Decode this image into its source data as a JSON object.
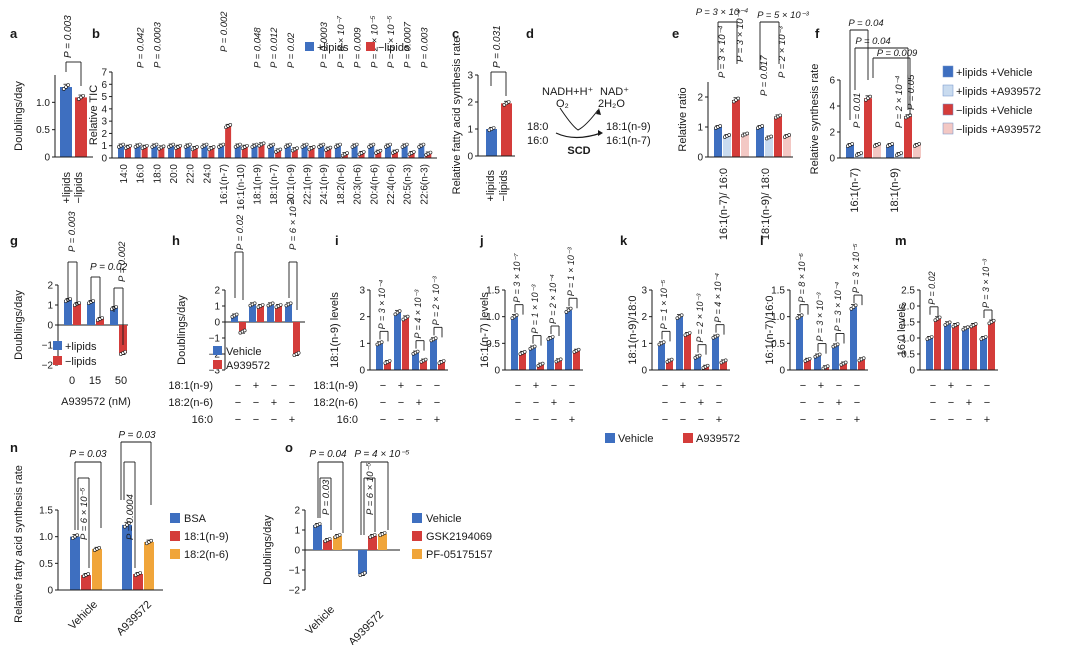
{
  "colors": {
    "blue": "#3e6fc0",
    "red": "#d43c3a",
    "light_blue": "#c9dbef",
    "pink": "#f3c8c4",
    "orange": "#f0a53a",
    "ink": "#1a1a1a"
  },
  "chart_data": [
    {
      "id": "a",
      "panel_label": "a",
      "type": "bar",
      "ylabel": "Doublings/day",
      "ylim": [
        0,
        1.5
      ],
      "yticks": [
        "0",
        "0.5",
        "1.0"
      ],
      "ytick_values": [
        0,
        0.5,
        1.0
      ],
      "categories": [
        "+lipids",
        "−lipids"
      ],
      "values": [
        1.28,
        1.09
      ],
      "annotations": [
        {
          "text": "P = 0.003"
        }
      ]
    },
    {
      "id": "b",
      "panel_label": "b",
      "type": "bar",
      "ylabel": "Relative TIC",
      "ylim": [
        0,
        7
      ],
      "yticks": [
        "0",
        "1",
        "2",
        "3",
        "4",
        "5",
        "6",
        "7"
      ],
      "legend": [
        "+lipids",
        "−lipids"
      ],
      "categories": [
        "14:0",
        "16:0",
        "18:0",
        "20:0",
        "22:0",
        "24:0",
        "16:1(n-7)",
        "16:1(n-10)",
        "18:1(n-9)",
        "18:1(n-7)",
        "20:1(n-9)",
        "22:1(n-9)",
        "24:1(n-9)",
        "18:2(n-6)",
        "20:3(n-6)",
        "20:4(n-6)",
        "22:4(n-6)",
        "20:5(n-3)",
        "22:6(n-3)"
      ],
      "series": [
        {
          "name": "+lipids",
          "values": [
            1,
            1,
            1,
            1,
            1,
            1,
            1,
            1,
            1,
            1,
            1,
            1,
            1,
            1,
            1,
            1,
            1,
            1,
            1
          ]
        },
        {
          "name": "−lipids",
          "values": [
            0.9,
            0.9,
            0.85,
            0.9,
            0.8,
            0.8,
            2.6,
            0.9,
            1.1,
            0.6,
            0.7,
            0.8,
            0.75,
            0.3,
            0.4,
            0.5,
            0.5,
            0.4,
            0.35
          ]
        }
      ],
      "annotations": [
        "",
        "P = 0.042",
        "P = 0.0003",
        "",
        "",
        "",
        "P = 0.002",
        "",
        "P = 0.048",
        "P = 0.012",
        "P = 0.02",
        "",
        "P = 0.0003",
        "P = 8 × 10⁻⁷",
        "P = 0.009",
        "P = 2 × 10⁻⁵",
        "P = 6 × 10⁻⁵",
        "P = 0.0007",
        "P = 0.003"
      ]
    },
    {
      "id": "c",
      "panel_label": "c",
      "type": "bar",
      "ylabel": "Relative fatty acid synthesis rate",
      "ylim": [
        0,
        3
      ],
      "yticks": [
        "0",
        "1",
        "2",
        "3"
      ],
      "categories": [
        "+lipids",
        "−lipids"
      ],
      "values": [
        1.0,
        1.95
      ],
      "annotations": [
        {
          "text": "P = 0.031"
        }
      ]
    },
    {
      "id": "d",
      "panel_label": "d",
      "type": "diagram",
      "top_left": "NADH+H⁺",
      "top_left2": "O₂",
      "top_right": "NAD⁺",
      "top_right2": "2H₂O",
      "substrates": [
        "18:0",
        "16:0"
      ],
      "products": [
        "18:1(n-9)",
        "16:1(n-7)"
      ],
      "enzyme": "SCD"
    },
    {
      "id": "e",
      "panel_label": "e",
      "type": "bar",
      "ylabel": "Relative ratio",
      "ylim": [
        0,
        2.5
      ],
      "yticks": [
        "0",
        "1",
        "2"
      ],
      "categories": [
        "16:1(n-7)/ 16:0",
        "18:1(n-9)/ 18:0"
      ],
      "series_names": [
        "+lipids +Vehicle",
        "+lipids +A939572",
        "−lipids +Vehicle",
        "−lipids +A939572"
      ],
      "series": [
        [
          1.0,
          1.0
        ],
        [
          0.7,
          0.65
        ],
        [
          1.9,
          1.35
        ],
        [
          0.75,
          0.7
        ]
      ],
      "annotations": [
        "P = 3 × 10⁻⁴",
        "P = 5 × 10⁻³",
        "P = 3 × 10⁻⁴",
        "P = 3 × 10⁻⁴",
        "P = 0.017",
        "P = 2 × 10⁻³"
      ]
    },
    {
      "id": "f",
      "panel_label": "f",
      "type": "bar",
      "ylabel": "Relative synthesis rate",
      "ylim": [
        0,
        6
      ],
      "yticks": [
        "0",
        "2",
        "4",
        "6"
      ],
      "categories": [
        "16:1(n-7)",
        "18:1(n-9)"
      ],
      "series_names": [
        "+lipids +Vehicle",
        "+lipids +A939572",
        "−lipids +Vehicle",
        "−lipids +A939572"
      ],
      "series": [
        [
          1.0,
          1.0
        ],
        [
          0.3,
          0.3
        ],
        [
          4.6,
          3.2
        ],
        [
          1.0,
          1.0
        ]
      ],
      "annotations": [
        "P = 0.04",
        "P = 0.04",
        "P = 0.009",
        "P = 0.01",
        "P = 2 × 10⁻⁴",
        "P = 0.05"
      ]
    },
    {
      "id": "g",
      "panel_label": "g",
      "type": "bar",
      "ylabel": "Doublings/day",
      "ylim": [
        -2,
        2
      ],
      "yticks": [
        "−2",
        "−1",
        "0",
        "1",
        "2"
      ],
      "xlabel": "A939572 (nM)",
      "categories": [
        "0",
        "15",
        "50"
      ],
      "legend": [
        "+lipids",
        "−lipids"
      ],
      "series": [
        {
          "name": "+lipids",
          "values": [
            1.25,
            1.15,
            0.85
          ]
        },
        {
          "name": "−lipids",
          "values": [
            1.05,
            0.3,
            -1.4
          ]
        }
      ],
      "annotations": [
        "P = 0.003",
        "P = 0.02",
        "P = 0.002"
      ]
    },
    {
      "id": "h",
      "panel_label": "h",
      "type": "bar",
      "ylabel": "Doublings/day",
      "ylim": [
        -3,
        2
      ],
      "yticks": [
        "−3",
        "−2",
        "−1",
        "0",
        "1",
        "2"
      ],
      "legend": [
        "Vehicle",
        "A939572"
      ],
      "row_labels": [
        "18:1(n-9)",
        "18:2(n-6)",
        "16:0"
      ],
      "row_marks": [
        [
          "−",
          "+",
          "−",
          "−"
        ],
        [
          "−",
          "−",
          "+",
          "−"
        ],
        [
          "−",
          "−",
          "−",
          "+"
        ]
      ],
      "series": [
        {
          "name": "Vehicle",
          "values": [
            0.4,
            1.1,
            1.1,
            1.1
          ]
        },
        {
          "name": "A939572",
          "values": [
            -0.6,
            1.0,
            1.0,
            -2.0
          ]
        }
      ],
      "annotations": [
        "P = 0.02",
        "P = 6 × 10⁻⁴"
      ]
    },
    {
      "id": "i",
      "panel_label": "i",
      "type": "bar",
      "ylabel": "18:1(n-9) levels",
      "ylim": [
        0,
        3
      ],
      "yticks": [
        "0",
        "1",
        "2",
        "3"
      ],
      "row_labels": [
        "18:1(n-9)",
        "18:2(n-6)",
        "16:0"
      ],
      "row_marks": [
        [
          "−",
          "+",
          "−",
          "−"
        ],
        [
          "−",
          "−",
          "+",
          "−"
        ],
        [
          "−",
          "−",
          "−",
          "+"
        ]
      ],
      "series": [
        {
          "name": "Vehicle",
          "values": [
            1.0,
            2.15,
            0.65,
            1.15
          ]
        },
        {
          "name": "A939572",
          "values": [
            0.3,
            1.95,
            0.35,
            0.3
          ]
        }
      ],
      "annotations": [
        "P = 3 × 10⁻⁴",
        "",
        "P = 4 × 10⁻³",
        "P = 2 × 10⁻³"
      ]
    },
    {
      "id": "j",
      "panel_label": "j",
      "type": "bar",
      "ylabel": "16:1(n-7) levels",
      "ylim": [
        0,
        1.5
      ],
      "yticks": [
        "0",
        "0.5",
        "1.0",
        "1.5"
      ],
      "row_labels": [
        "18:1(n-9)",
        "18:2(n-6)",
        "16:0"
      ],
      "row_marks": [
        [
          "−",
          "+",
          "−",
          "−"
        ],
        [
          "−",
          "−",
          "+",
          "−"
        ],
        [
          "−",
          "−",
          "−",
          "+"
        ]
      ],
      "series": [
        {
          "name": "Vehicle",
          "values": [
            1.0,
            0.42,
            0.6,
            1.12
          ]
        },
        {
          "name": "A939572",
          "values": [
            0.32,
            0.1,
            0.18,
            0.36
          ]
        }
      ],
      "annotations": [
        "P = 3 × 10⁻⁷",
        "P = 1 × 10⁻³",
        "P = 2 × 10⁻⁴",
        "P = 1 × 10⁻³"
      ]
    },
    {
      "id": "k",
      "panel_label": "k",
      "type": "bar",
      "ylabel": "18:1(n-9)/18:0",
      "ylim": [
        0,
        3
      ],
      "yticks": [
        "0",
        "1",
        "2",
        "3"
      ],
      "row_labels": [
        "18:1(n-9)",
        "18:2(n-6)",
        "16:0"
      ],
      "row_marks": [
        [
          "−",
          "+",
          "−",
          "−"
        ],
        [
          "−",
          "−",
          "+",
          "−"
        ],
        [
          "−",
          "−",
          "−",
          "+"
        ]
      ],
      "series": [
        {
          "name": "Vehicle",
          "values": [
            1.0,
            2.0,
            0.5,
            1.25
          ]
        },
        {
          "name": "A939572",
          "values": [
            0.35,
            1.35,
            0.12,
            0.32
          ]
        }
      ],
      "annotations": [
        "P = 1 × 10⁻⁵",
        "",
        "P = 2 × 10⁻³",
        "P = 4 × 10⁻⁴"
      ]
    },
    {
      "id": "l",
      "panel_label": "l",
      "type": "bar",
      "ylabel": "16:1(n-7)/16:0",
      "ylim": [
        0,
        1.5
      ],
      "yticks": [
        "0",
        "0.5",
        "1.0",
        "1.5"
      ],
      "row_labels": [
        "18:1(n-9)",
        "18:2(n-6)",
        "16:0"
      ],
      "row_marks": [
        [
          "−",
          "+",
          "−",
          "−"
        ],
        [
          "−",
          "−",
          "+",
          "−"
        ],
        [
          "−",
          "−",
          "−",
          "+"
        ]
      ],
      "series": [
        {
          "name": "Vehicle",
          "values": [
            1.0,
            0.27,
            0.46,
            1.18
          ]
        },
        {
          "name": "A939572",
          "values": [
            0.19,
            0.05,
            0.12,
            0.2
          ]
        }
      ],
      "annotations": [
        "P = 8 × 10⁻⁶",
        "P = 3 × 10⁻³",
        "P = 3 × 10⁻⁴",
        "P = 3 × 10⁻⁵"
      ]
    },
    {
      "id": "m",
      "panel_label": "m",
      "type": "bar",
      "ylabel": "16:0 levels",
      "ylim": [
        0,
        2.5
      ],
      "yticks": [
        "0",
        "0.5",
        "1.0",
        "1.5",
        "2.0",
        "2.5"
      ],
      "row_labels": [
        "18:1(n-9)",
        "18:2(n-6)",
        "16:0"
      ],
      "row_marks": [
        [
          "−",
          "+",
          "−",
          "−"
        ],
        [
          "−",
          "−",
          "+",
          "−"
        ],
        [
          "−",
          "−",
          "−",
          "+"
        ]
      ],
      "series": [
        {
          "name": "Vehicle",
          "values": [
            1.0,
            1.45,
            1.3,
            1.0
          ]
        },
        {
          "name": "A939572",
          "values": [
            1.6,
            1.4,
            1.4,
            1.5
          ]
        }
      ],
      "annotations": [
        "P = 0.02",
        "",
        "",
        "P = 3 × 10⁻³"
      ]
    },
    {
      "id": "n",
      "panel_label": "n",
      "type": "bar",
      "ylabel": "Relative fatty acid synthesis rate",
      "ylim": [
        0,
        1.5
      ],
      "yticks": [
        "0",
        "0.5",
        "1.0",
        "1.5"
      ],
      "categories": [
        "Vehicle",
        "A939572"
      ],
      "legend": [
        "BSA",
        "18:1(n-9)",
        "18:2(n-6)"
      ],
      "series": [
        {
          "name": "BSA",
          "values": [
            1.0,
            1.22
          ]
        },
        {
          "name": "18:1(n-9)",
          "values": [
            0.28,
            0.3
          ]
        },
        {
          "name": "18:2(n-6)",
          "values": [
            0.77,
            0.9
          ]
        }
      ],
      "annotations": [
        "P = 0.03",
        "P = 6 × 10⁻⁵",
        "P = 0.03",
        "P = 0.0004"
      ]
    },
    {
      "id": "o",
      "panel_label": "o",
      "type": "bar",
      "ylabel": "Doublings/day",
      "ylim": [
        -2,
        2
      ],
      "yticks": [
        "−2",
        "−1",
        "0",
        "1",
        "2"
      ],
      "categories": [
        "Vehicle",
        "A939572"
      ],
      "legend": [
        "Vehicle",
        "GSK2194069",
        "PF-05175157"
      ],
      "series": [
        {
          "name": "Vehicle",
          "values": [
            1.25,
            -1.2
          ]
        },
        {
          "name": "GSK2194069",
          "values": [
            0.5,
            0.7
          ]
        },
        {
          "name": "PF-05175157",
          "values": [
            0.7,
            0.8
          ]
        }
      ],
      "annotations": [
        "P = 0.04",
        "P = 0.03",
        "P = 4 × 10⁻⁵",
        "P = 6 × 10⁻⁵"
      ]
    },
    {
      "id": "legend_ik",
      "type": "legend",
      "entries": [
        "Vehicle",
        "A939572"
      ]
    }
  ]
}
